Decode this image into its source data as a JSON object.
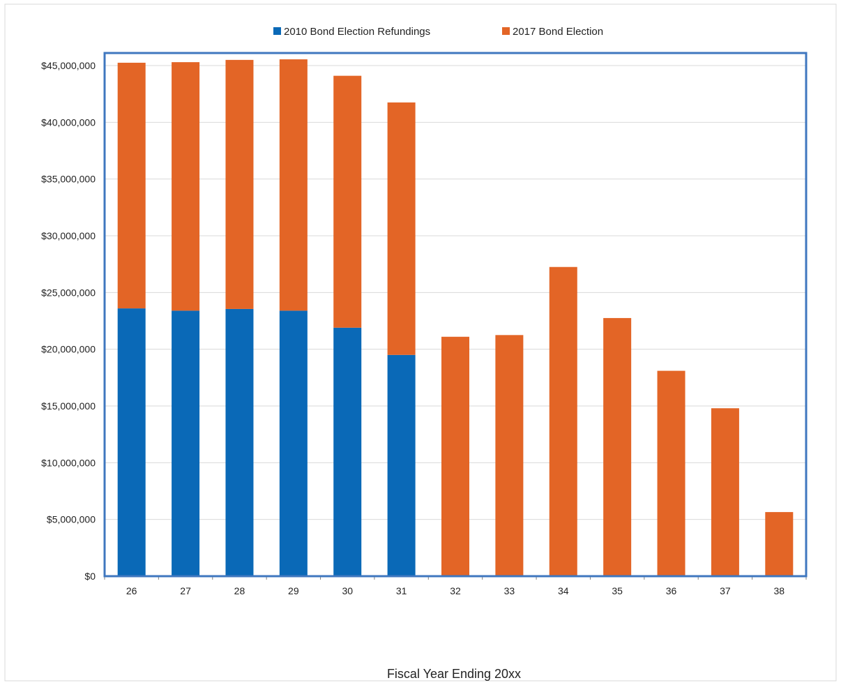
{
  "chart_data": {
    "type": "bar",
    "stacked": true,
    "categories": [
      "26",
      "27",
      "28",
      "29",
      "30",
      "31",
      "32",
      "33",
      "34",
      "35",
      "36",
      "37",
      "38"
    ],
    "series": [
      {
        "name": "2010 Bond Election Refundings",
        "color": "#0a69b7",
        "values": [
          23600000,
          23400000,
          23550000,
          23400000,
          21900000,
          19500000,
          0,
          0,
          0,
          0,
          0,
          0,
          0
        ]
      },
      {
        "name": "2017 Bond Election",
        "color": "#e36526",
        "values": [
          21650000,
          21900000,
          21950000,
          22150000,
          22200000,
          22250000,
          21100000,
          21250000,
          27250000,
          22750000,
          18100000,
          14800000,
          5650000
        ]
      }
    ],
    "xlabel": "Fiscal Year Ending 20xx",
    "ylabel": "",
    "ylim": [
      0,
      45000000
    ],
    "yticks": [
      0,
      5000000,
      10000000,
      15000000,
      20000000,
      25000000,
      30000000,
      35000000,
      40000000,
      45000000
    ],
    "ytick_labels": [
      "$0",
      "$5,000,000",
      "$10,000,000",
      "$15,000,000",
      "$20,000,000",
      "$25,000,000",
      "$30,000,000",
      "$35,000,000",
      "$40,000,000",
      "$45,000,000"
    ],
    "grid": true,
    "legend_position": "top-center",
    "plot_border_color": "#3f77bf"
  }
}
